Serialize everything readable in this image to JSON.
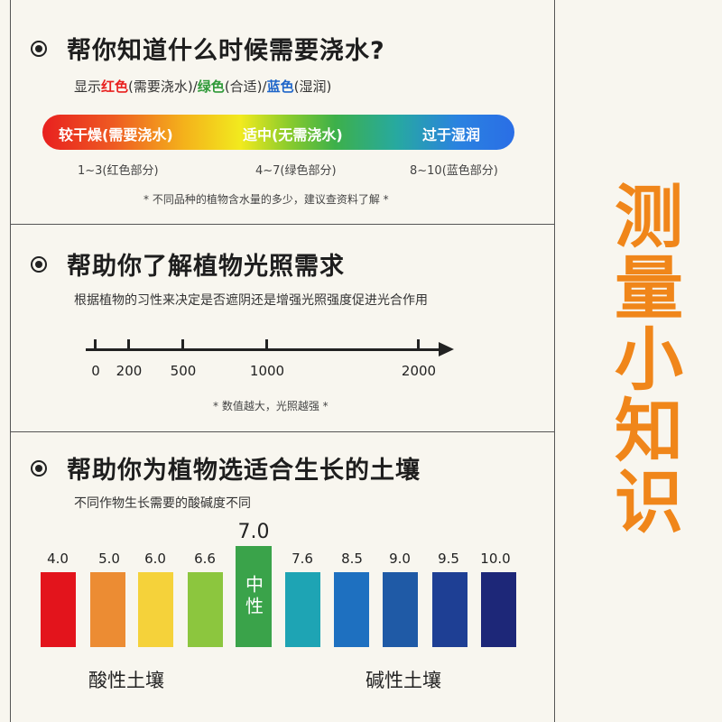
{
  "side_title": "测量小知识",
  "water": {
    "title": "帮你知道什么时候需要浇水?",
    "legend": {
      "prefix": "显示",
      "red": "红色",
      "red_desc": "(需要浇水)/",
      "green": "绿色",
      "green_desc": "(合适)/",
      "blue": "蓝色",
      "blue_desc": "(湿润)"
    },
    "bar_labels": [
      "较干燥(需要浇水)",
      "适中(无需浇水)",
      "过于湿润"
    ],
    "ranges": [
      "1~3(红色部分)",
      "4~7(绿色部分)",
      "8~10(蓝色部分)"
    ],
    "note": "* 不同品种的植物含水量的多少，建议查资料了解 *"
  },
  "light": {
    "title": "帮助你了解植物光照需求",
    "subtitle": "根据植物的习性来决定是否遮阴还是增强光照强度促进光合作用",
    "axis_ticks": [
      "0",
      "200",
      "500",
      "1000",
      "2000"
    ],
    "note": "* 数值越大，光照越强 *"
  },
  "soil": {
    "title": "帮助你为植物选适合生长的土壤",
    "subtitle": "不同作物生长需要的酸碱度不同",
    "acid_values": [
      "4.0",
      "5.0",
      "6.0",
      "6.6"
    ],
    "acid_colors": [
      "#e3141c",
      "#ec8c33",
      "#f5d23a",
      "#8cc63e"
    ],
    "neutral_value": "7.0",
    "neutral_label": "中性",
    "neutral_color": "#3aa34a",
    "alkali_values": [
      "7.6",
      "8.5",
      "9.0",
      "9.5",
      "10.0"
    ],
    "alkali_colors": [
      "#1ea4b4",
      "#1e70c0",
      "#1f5aa6",
      "#1e3f94",
      "#1d2778"
    ],
    "acid_label": "酸性土壤",
    "alkali_label": "碱性土壤"
  }
}
